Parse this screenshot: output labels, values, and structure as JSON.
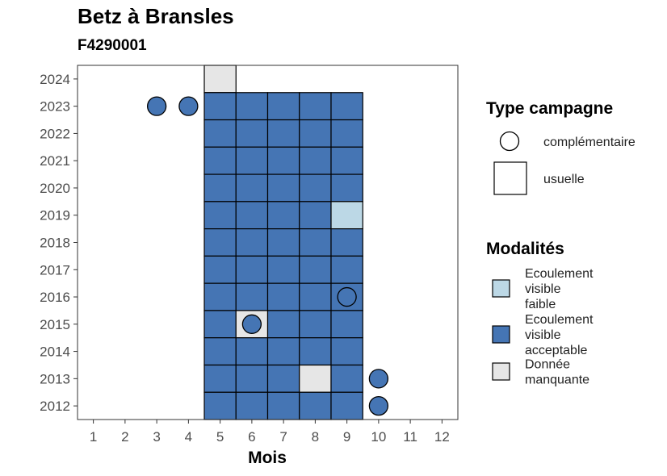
{
  "title": "Betz à Bransles",
  "subtitle": "F4290001",
  "chart_data": {
    "type": "heatmap",
    "xlabel": "Mois",
    "ylabel": "",
    "x_ticks": [
      "1",
      "2",
      "3",
      "4",
      "5",
      "6",
      "7",
      "8",
      "9",
      "10",
      "11",
      "12"
    ],
    "y_ticks": [
      "2024",
      "2023",
      "2022",
      "2021",
      "2020",
      "2019",
      "2018",
      "2017",
      "2016",
      "2015",
      "2014",
      "2013",
      "2012"
    ],
    "xlim": [
      0.5,
      12.5
    ],
    "ylim": [
      2011.5,
      2024.5
    ],
    "grid": false,
    "legend_position": "right",
    "colors": {
      "Ecoulement visible faible": "#bcd8e6",
      "Ecoulement visible acceptable": "#4575b4",
      "Donnée manquante": "#e6e6e6"
    },
    "cells": [
      {
        "year": 2024,
        "month": 5,
        "modalite": "Donnée manquante",
        "campagne": "usuelle"
      },
      {
        "year": 2023,
        "month": 5,
        "modalite": "Ecoulement visible acceptable",
        "campagne": "usuelle"
      },
      {
        "year": 2023,
        "month": 6,
        "modalite": "Ecoulement visible acceptable",
        "campagne": "usuelle"
      },
      {
        "year": 2023,
        "month": 7,
        "modalite": "Ecoulement visible acceptable",
        "campagne": "usuelle"
      },
      {
        "year": 2023,
        "month": 8,
        "modalite": "Ecoulement visible acceptable",
        "campagne": "usuelle"
      },
      {
        "year": 2023,
        "month": 9,
        "modalite": "Ecoulement visible acceptable",
        "campagne": "usuelle"
      },
      {
        "year": 2022,
        "month": 5,
        "modalite": "Ecoulement visible acceptable",
        "campagne": "usuelle"
      },
      {
        "year": 2022,
        "month": 6,
        "modalite": "Ecoulement visible acceptable",
        "campagne": "usuelle"
      },
      {
        "year": 2022,
        "month": 7,
        "modalite": "Ecoulement visible acceptable",
        "campagne": "usuelle"
      },
      {
        "year": 2022,
        "month": 8,
        "modalite": "Ecoulement visible acceptable",
        "campagne": "usuelle"
      },
      {
        "year": 2022,
        "month": 9,
        "modalite": "Ecoulement visible acceptable",
        "campagne": "usuelle"
      },
      {
        "year": 2021,
        "month": 5,
        "modalite": "Ecoulement visible acceptable",
        "campagne": "usuelle"
      },
      {
        "year": 2021,
        "month": 6,
        "modalite": "Ecoulement visible acceptable",
        "campagne": "usuelle"
      },
      {
        "year": 2021,
        "month": 7,
        "modalite": "Ecoulement visible acceptable",
        "campagne": "usuelle"
      },
      {
        "year": 2021,
        "month": 8,
        "modalite": "Ecoulement visible acceptable",
        "campagne": "usuelle"
      },
      {
        "year": 2021,
        "month": 9,
        "modalite": "Ecoulement visible acceptable",
        "campagne": "usuelle"
      },
      {
        "year": 2020,
        "month": 5,
        "modalite": "Ecoulement visible acceptable",
        "campagne": "usuelle"
      },
      {
        "year": 2020,
        "month": 6,
        "modalite": "Ecoulement visible acceptable",
        "campagne": "usuelle"
      },
      {
        "year": 2020,
        "month": 7,
        "modalite": "Ecoulement visible acceptable",
        "campagne": "usuelle"
      },
      {
        "year": 2020,
        "month": 8,
        "modalite": "Ecoulement visible acceptable",
        "campagne": "usuelle"
      },
      {
        "year": 2020,
        "month": 9,
        "modalite": "Ecoulement visible acceptable",
        "campagne": "usuelle"
      },
      {
        "year": 2019,
        "month": 5,
        "modalite": "Ecoulement visible acceptable",
        "campagne": "usuelle"
      },
      {
        "year": 2019,
        "month": 6,
        "modalite": "Ecoulement visible acceptable",
        "campagne": "usuelle"
      },
      {
        "year": 2019,
        "month": 7,
        "modalite": "Ecoulement visible acceptable",
        "campagne": "usuelle"
      },
      {
        "year": 2019,
        "month": 8,
        "modalite": "Ecoulement visible acceptable",
        "campagne": "usuelle"
      },
      {
        "year": 2019,
        "month": 9,
        "modalite": "Ecoulement visible faible",
        "campagne": "usuelle"
      },
      {
        "year": 2018,
        "month": 5,
        "modalite": "Ecoulement visible acceptable",
        "campagne": "usuelle"
      },
      {
        "year": 2018,
        "month": 6,
        "modalite": "Ecoulement visible acceptable",
        "campagne": "usuelle"
      },
      {
        "year": 2018,
        "month": 7,
        "modalite": "Ecoulement visible acceptable",
        "campagne": "usuelle"
      },
      {
        "year": 2018,
        "month": 8,
        "modalite": "Ecoulement visible acceptable",
        "campagne": "usuelle"
      },
      {
        "year": 2018,
        "month": 9,
        "modalite": "Ecoulement visible acceptable",
        "campagne": "usuelle"
      },
      {
        "year": 2017,
        "month": 5,
        "modalite": "Ecoulement visible acceptable",
        "campagne": "usuelle"
      },
      {
        "year": 2017,
        "month": 6,
        "modalite": "Ecoulement visible acceptable",
        "campagne": "usuelle"
      },
      {
        "year": 2017,
        "month": 7,
        "modalite": "Ecoulement visible acceptable",
        "campagne": "usuelle"
      },
      {
        "year": 2017,
        "month": 8,
        "modalite": "Ecoulement visible acceptable",
        "campagne": "usuelle"
      },
      {
        "year": 2017,
        "month": 9,
        "modalite": "Ecoulement visible acceptable",
        "campagne": "usuelle"
      },
      {
        "year": 2016,
        "month": 5,
        "modalite": "Ecoulement visible acceptable",
        "campagne": "usuelle"
      },
      {
        "year": 2016,
        "month": 6,
        "modalite": "Ecoulement visible acceptable",
        "campagne": "usuelle"
      },
      {
        "year": 2016,
        "month": 7,
        "modalite": "Ecoulement visible acceptable",
        "campagne": "usuelle"
      },
      {
        "year": 2016,
        "month": 8,
        "modalite": "Ecoulement visible acceptable",
        "campagne": "usuelle"
      },
      {
        "year": 2016,
        "month": 9,
        "modalite": "Ecoulement visible acceptable",
        "campagne": "usuelle"
      },
      {
        "year": 2015,
        "month": 5,
        "modalite": "Ecoulement visible acceptable",
        "campagne": "usuelle"
      },
      {
        "year": 2015,
        "month": 6,
        "modalite": "Donnée manquante",
        "campagne": "usuelle"
      },
      {
        "year": 2015,
        "month": 7,
        "modalite": "Ecoulement visible acceptable",
        "campagne": "usuelle"
      },
      {
        "year": 2015,
        "month": 8,
        "modalite": "Ecoulement visible acceptable",
        "campagne": "usuelle"
      },
      {
        "year": 2015,
        "month": 9,
        "modalite": "Ecoulement visible acceptable",
        "campagne": "usuelle"
      },
      {
        "year": 2014,
        "month": 5,
        "modalite": "Ecoulement visible acceptable",
        "campagne": "usuelle"
      },
      {
        "year": 2014,
        "month": 6,
        "modalite": "Ecoulement visible acceptable",
        "campagne": "usuelle"
      },
      {
        "year": 2014,
        "month": 7,
        "modalite": "Ecoulement visible acceptable",
        "campagne": "usuelle"
      },
      {
        "year": 2014,
        "month": 8,
        "modalite": "Ecoulement visible acceptable",
        "campagne": "usuelle"
      },
      {
        "year": 2014,
        "month": 9,
        "modalite": "Ecoulement visible acceptable",
        "campagne": "usuelle"
      },
      {
        "year": 2013,
        "month": 5,
        "modalite": "Ecoulement visible acceptable",
        "campagne": "usuelle"
      },
      {
        "year": 2013,
        "month": 6,
        "modalite": "Ecoulement visible acceptable",
        "campagne": "usuelle"
      },
      {
        "year": 2013,
        "month": 7,
        "modalite": "Ecoulement visible acceptable",
        "campagne": "usuelle"
      },
      {
        "year": 2013,
        "month": 8,
        "modalite": "Donnée manquante",
        "campagne": "usuelle"
      },
      {
        "year": 2013,
        "month": 9,
        "modalite": "Ecoulement visible acceptable",
        "campagne": "usuelle"
      },
      {
        "year": 2012,
        "month": 5,
        "modalite": "Ecoulement visible acceptable",
        "campagne": "usuelle"
      },
      {
        "year": 2012,
        "month": 6,
        "modalite": "Ecoulement visible acceptable",
        "campagne": "usuelle"
      },
      {
        "year": 2012,
        "month": 7,
        "modalite": "Ecoulement visible acceptable",
        "campagne": "usuelle"
      },
      {
        "year": 2012,
        "month": 8,
        "modalite": "Ecoulement visible acceptable",
        "campagne": "usuelle"
      },
      {
        "year": 2012,
        "month": 9,
        "modalite": "Ecoulement visible acceptable",
        "campagne": "usuelle"
      }
    ],
    "points": [
      {
        "year": 2023,
        "month": 3,
        "modalite": "Ecoulement visible acceptable",
        "campagne": "complémentaire"
      },
      {
        "year": 2023,
        "month": 4,
        "modalite": "Ecoulement visible acceptable",
        "campagne": "complémentaire"
      },
      {
        "year": 2016,
        "month": 9,
        "modalite": "Ecoulement visible acceptable",
        "campagne": "complémentaire"
      },
      {
        "year": 2015,
        "month": 6,
        "modalite": "Ecoulement visible acceptable",
        "campagne": "complémentaire"
      },
      {
        "year": 2013,
        "month": 10,
        "modalite": "Ecoulement visible acceptable",
        "campagne": "complémentaire"
      },
      {
        "year": 2012,
        "month": 10,
        "modalite": "Ecoulement visible acceptable",
        "campagne": "complémentaire"
      }
    ]
  },
  "legend": {
    "type_campagne": {
      "title": "Type campagne",
      "items": [
        {
          "label": "complémentaire",
          "shape": "circle"
        },
        {
          "label": "usuelle",
          "shape": "square"
        }
      ]
    },
    "modalites": {
      "title": "Modalités",
      "items": [
        {
          "label_lines": [
            "Ecoulement",
            "visible",
            "faible"
          ],
          "color": "#bcd8e6"
        },
        {
          "label_lines": [
            "Ecoulement",
            "visible",
            "acceptable"
          ],
          "color": "#4575b4"
        },
        {
          "label_lines": [
            "Donnée",
            "manquante"
          ],
          "color": "#e6e6e6"
        }
      ]
    }
  }
}
